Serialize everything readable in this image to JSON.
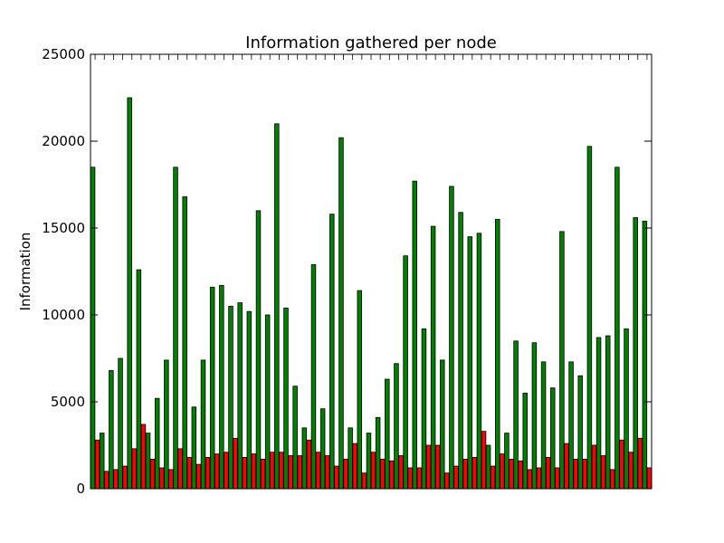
{
  "chart_data": {
    "type": "bar",
    "title": "Information gathered per node",
    "xlabel": "",
    "ylabel": "Information",
    "ylim": [
      0,
      25000
    ],
    "yticks": [
      0,
      5000,
      10000,
      15000,
      20000,
      25000
    ],
    "legend": "none",
    "grid": false,
    "categories_note": "",
    "series": [
      {
        "color": "#008000",
        "values": [
          18500,
          3200,
          6800,
          7500,
          22500,
          12600,
          3200,
          5200,
          7400,
          18500,
          16800,
          4700,
          7400,
          11600,
          11700,
          10500,
          10700,
          10200,
          16000,
          10000,
          21000,
          10400,
          5900,
          3500,
          12900,
          4600,
          15800,
          20200,
          3500,
          11400,
          3200,
          4100,
          6300,
          7200,
          13400,
          17700,
          9200,
          15100,
          7400,
          17400,
          15900,
          14500,
          14700,
          2500,
          15500,
          3200,
          8500,
          5500,
          8400,
          7300,
          5800,
          14800,
          7300,
          6500,
          19700,
          8700,
          8800,
          18500,
          9200,
          15600,
          15400
        ]
      },
      {
        "color": "#ff0000",
        "values": [
          2800,
          1000,
          1100,
          1300,
          2300,
          3700,
          1700,
          1200,
          1100,
          2300,
          1800,
          1400,
          1800,
          2000,
          2100,
          2900,
          1800,
          2000,
          1700,
          2100,
          2100,
          1900,
          1900,
          2800,
          2100,
          1900,
          1300,
          1700,
          2600,
          900,
          2100,
          1700,
          1600,
          1900,
          1200,
          1200,
          2500,
          2500,
          900,
          1300,
          1700,
          1800,
          3300,
          1300,
          2000,
          1700,
          1600,
          1100,
          1200,
          1800,
          1200,
          2600,
          1700,
          1700,
          2500,
          1900,
          1100,
          2800,
          2100,
          2900,
          1200
        ]
      }
    ]
  }
}
